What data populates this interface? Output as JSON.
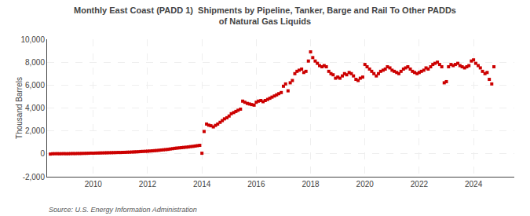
{
  "chart_data": {
    "type": "scatter",
    "title": "Monthly East Coast (PADD 1)  Shipments by Pipeline, Tanker, Barge and Rail To Other PADDs\nof Natural Gas Liquids",
    "y_label": "Thousand Barrels",
    "annotations": [
      "Source: U.S. Energy Information Administration"
    ],
    "color": "#CC0000",
    "marker": "square",
    "grid": true,
    "xlim": [
      2008.3,
      2025.5
    ],
    "xticks": [
      2010,
      2012,
      2014,
      2016,
      2018,
      2020,
      2022,
      2024
    ],
    "ylim": [
      -2000,
      10000
    ],
    "yticks": [
      {
        "value": -2000,
        "label": "-2,000"
      },
      0,
      {
        "value": 2000,
        "label": "2,000"
      },
      {
        "value": 4000,
        "label": "4,000"
      },
      {
        "value": 6000,
        "label": "6,000"
      },
      {
        "value": 8000,
        "label": "8,000"
      },
      {
        "value": 10000,
        "label": "10,000"
      }
    ],
    "x": [
      2008.42,
      2008.5,
      2008.58,
      2008.67,
      2008.75,
      2008.83,
      2008.92,
      2009.0,
      2009.08,
      2009.17,
      2009.25,
      2009.33,
      2009.42,
      2009.5,
      2009.58,
      2009.67,
      2009.75,
      2009.83,
      2009.92,
      2010.0,
      2010.08,
      2010.17,
      2010.25,
      2010.33,
      2010.42,
      2010.5,
      2010.58,
      2010.67,
      2010.75,
      2010.83,
      2010.92,
      2011.0,
      2011.08,
      2011.17,
      2011.25,
      2011.33,
      2011.42,
      2011.5,
      2011.58,
      2011.67,
      2011.75,
      2011.83,
      2011.92,
      2012.0,
      2012.08,
      2012.17,
      2012.25,
      2012.33,
      2012.42,
      2012.5,
      2012.58,
      2012.67,
      2012.75,
      2012.83,
      2012.92,
      2013.0,
      2013.08,
      2013.17,
      2013.25,
      2013.33,
      2013.42,
      2013.5,
      2013.58,
      2013.67,
      2013.75,
      2013.83,
      2013.92,
      2014.0,
      2014.08,
      2014.17,
      2014.25,
      2014.33,
      2014.42,
      2014.5,
      2014.58,
      2014.67,
      2014.75,
      2014.83,
      2014.92,
      2015.0,
      2015.08,
      2015.17,
      2015.25,
      2015.33,
      2015.42,
      2015.5,
      2015.58,
      2015.67,
      2015.75,
      2015.83,
      2015.92,
      2016.0,
      2016.08,
      2016.17,
      2016.25,
      2016.33,
      2016.42,
      2016.5,
      2016.58,
      2016.67,
      2016.75,
      2016.83,
      2016.92,
      2017.0,
      2017.08,
      2017.17,
      2017.25,
      2017.33,
      2017.42,
      2017.5,
      2017.58,
      2017.67,
      2017.75,
      2017.83,
      2017.92,
      2018.0,
      2018.08,
      2018.17,
      2018.25,
      2018.33,
      2018.42,
      2018.5,
      2018.58,
      2018.67,
      2018.75,
      2018.83,
      2018.92,
      2019.0,
      2019.08,
      2019.17,
      2019.25,
      2019.33,
      2019.42,
      2019.5,
      2019.58,
      2019.67,
      2019.75,
      2019.83,
      2019.92,
      2020.0,
      2020.08,
      2020.17,
      2020.25,
      2020.33,
      2020.42,
      2020.5,
      2020.58,
      2020.67,
      2020.75,
      2020.83,
      2020.92,
      2021.0,
      2021.08,
      2021.17,
      2021.25,
      2021.33,
      2021.42,
      2021.5,
      2021.58,
      2021.67,
      2021.75,
      2021.83,
      2021.92,
      2022.0,
      2022.08,
      2022.17,
      2022.25,
      2022.33,
      2022.42,
      2022.5,
      2022.58,
      2022.67,
      2022.75,
      2022.83,
      2022.92,
      2023.0,
      2023.08,
      2023.17,
      2023.25,
      2023.33,
      2023.42,
      2023.5,
      2023.58,
      2023.67,
      2023.75,
      2023.83,
      2023.92,
      2024.0,
      2024.08,
      2024.17,
      2024.25,
      2024.33,
      2024.42,
      2024.5,
      2024.58,
      2024.67,
      2024.75
    ],
    "values": [
      -20,
      5,
      8,
      12,
      6,
      10,
      15,
      8,
      12,
      18,
      25,
      20,
      30,
      28,
      35,
      40,
      45,
      50,
      60,
      55,
      65,
      70,
      75,
      80,
      85,
      90,
      95,
      100,
      105,
      110,
      120,
      115,
      125,
      130,
      140,
      145,
      155,
      165,
      175,
      185,
      200,
      210,
      220,
      230,
      245,
      260,
      275,
      290,
      310,
      330,
      350,
      370,
      390,
      420,
      450,
      480,
      500,
      520,
      540,
      560,
      580,
      600,
      630,
      650,
      680,
      710,
      740,
      50,
      1950,
      2600,
      2500,
      2450,
      2350,
      2480,
      2600,
      2750,
      2900,
      3050,
      3150,
      3300,
      3500,
      3600,
      3700,
      3800,
      3900,
      4600,
      4500,
      4400,
      4350,
      4300,
      4250,
      4500,
      4600,
      4650,
      4550,
      4650,
      4750,
      4850,
      4950,
      5050,
      5150,
      5250,
      5350,
      5900,
      6100,
      5500,
      6200,
      6400,
      7000,
      7200,
      7300,
      7400,
      7100,
      7200,
      8100,
      8900,
      8400,
      8100,
      7900,
      7700,
      7600,
      7700,
      7600,
      7200,
      7000,
      6900,
      6600,
      6700,
      6600,
      6800,
      7000,
      6900,
      7100,
      7000,
      6800,
      6500,
      6400,
      6600,
      6700,
      7800,
      7600,
      7400,
      7200,
      7000,
      6800,
      7000,
      7200,
      7300,
      7400,
      7600,
      7500,
      7300,
      7200,
      7100,
      7000,
      7200,
      7400,
      7500,
      7600,
      7400,
      7200,
      7100,
      7000,
      7100,
      7200,
      7300,
      7500,
      7400,
      7600,
      7800,
      7900,
      8000,
      7800,
      7600,
      6200,
      6300,
      7600,
      7800,
      7700,
      7800,
      7900,
      7700,
      7600,
      7500,
      7600,
      7700,
      8100,
      8200,
      7900,
      7700,
      7500,
      7200,
      7000,
      7100,
      6500,
      6100,
      7600
    ]
  }
}
